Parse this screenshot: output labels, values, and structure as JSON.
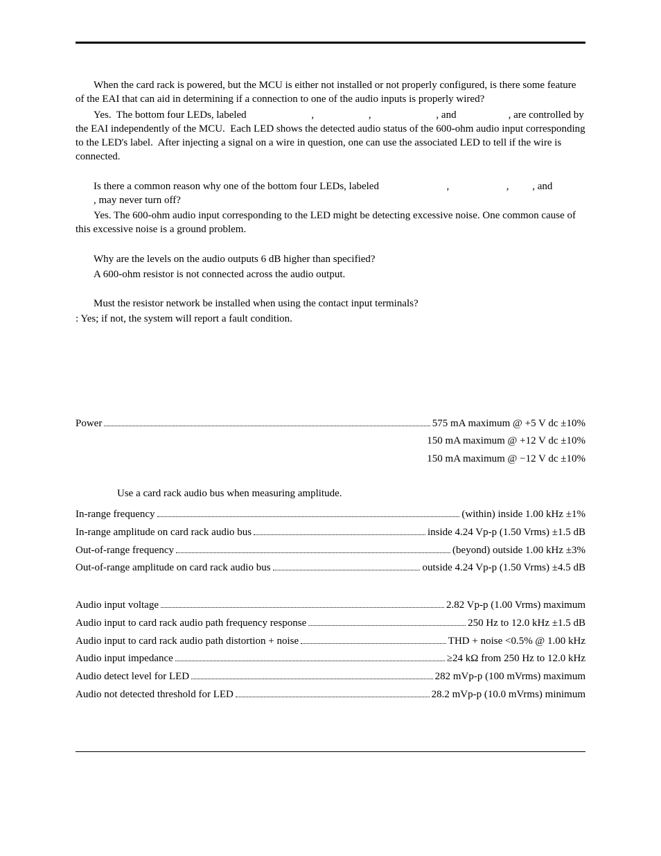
{
  "qa": {
    "q1": "When the card rack is powered, but the MCU is either not installed or not properly configured, is there some feature of the EAI that can aid in determining if a connection to one of the audio inputs is properly wired?",
    "a1": "Yes.  The bottom four LEDs, labeled                         ,                     ,                         , and                    , are controlled by the EAI independently of the MCU.  Each LED shows the detected audio status of the 600-ohm audio input corresponding to the LED's label.  After injecting a signal on a wire in question, one can use the associated LED to tell if the wire is connected.",
    "q2": "Is there a common reason why one of the bottom four LEDs, labeled                          ,                      ,         , and                    , may never turn off?",
    "a2": "Yes.  The 600-ohm audio input corresponding to the LED might be detecting excessive noise.  One common cause of this excessive noise is a ground problem.",
    "q3": "Why are the levels on the audio outputs 6 dB higher than specified?",
    "a3": "A 600-ohm resistor is not connected across the audio output.",
    "q4": "Must the resistor network be installed when using the contact input terminals?",
    "a4": ":  Yes; if not, the system will report a fault condition."
  },
  "specs": {
    "power": {
      "label": "Power",
      "line1": "575 mA maximum @ +5 V dc ±10%",
      "line2": "150 mA maximum @ +12 V dc ±10%",
      "line3": "150 mA maximum @ −12 V dc ±10%"
    },
    "note": "Use a card rack audio bus when measuring amplitude.",
    "group1": [
      {
        "label": "In-range frequency",
        "value": "(within) inside 1.00 kHz ±1%"
      },
      {
        "label": "In-range amplitude on card rack audio bus",
        "value": "inside 4.24 Vp-p (1.50 Vrms) ±1.5 dB"
      },
      {
        "label": "Out-of-range frequency",
        "value": " (beyond) outside 1.00 kHz ±3%"
      },
      {
        "label": "Out-of-range amplitude on card rack audio bus",
        "value": "outside 4.24 Vp-p (1.50 Vrms) ±4.5 dB"
      }
    ],
    "group2": [
      {
        "label": "Audio input voltage",
        "value": "2.82 Vp-p (1.00 Vrms) maximum"
      },
      {
        "label": "Audio input to card rack audio path frequency response",
        "value": " 250 Hz to 12.0 kHz ±1.5 dB"
      },
      {
        "label": "Audio input to card rack audio path distortion + noise",
        "value": "THD + noise <0.5% @ 1.00 kHz"
      },
      {
        "label": "Audio input impedance",
        "value": " ≥24 kΩ from 250 Hz to 12.0 kHz"
      },
      {
        "label": "Audio detect level for LED",
        "value": "282 mVp-p (100 mVrms) maximum"
      },
      {
        "label": "Audio not detected threshold for LED",
        "value": "28.2 mVp-p  (10.0 mVrms) minimum"
      }
    ]
  }
}
